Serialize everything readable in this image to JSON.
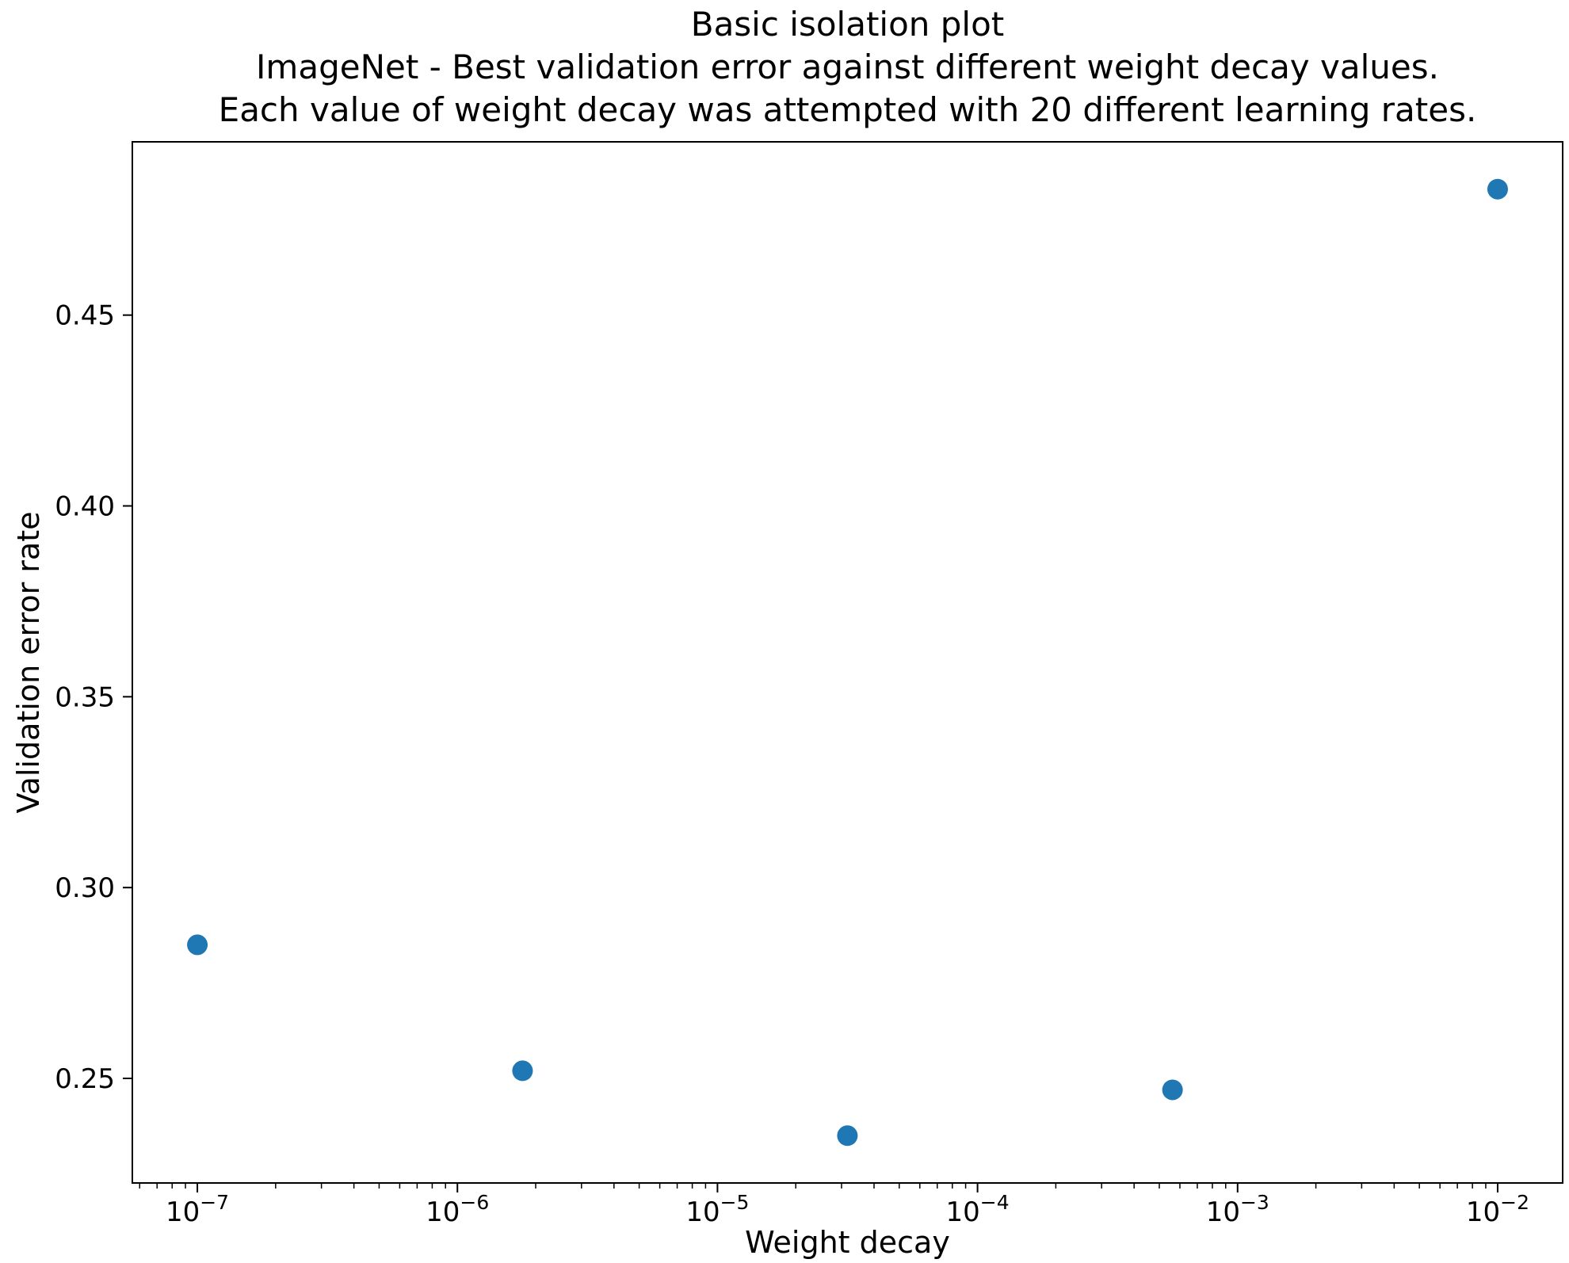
{
  "chart_data": {
    "type": "scatter",
    "title": "Basic isolation plot\nImageNet - Best validation error against different weight decay values.\nEach value of weight decay was attempted with 20 different learning rates.",
    "xlabel": "Weight decay",
    "ylabel": "Validation error rate",
    "x_scale": "log",
    "x": [
      1e-07,
      1.78e-06,
      3.16e-05,
      0.000562,
      0.01
    ],
    "y": [
      0.285,
      0.252,
      0.235,
      0.247,
      0.483
    ],
    "xlim_log10": [
      -7.25,
      -1.75
    ],
    "ylim": [
      0.2226,
      0.4954
    ],
    "x_tick_exponents": [
      -7,
      -6,
      -5,
      -4,
      -3,
      -2
    ],
    "y_tick_values": [
      0.25,
      0.3,
      0.35,
      0.4,
      0.45
    ],
    "y_tick_labels": [
      "0.25",
      "0.30",
      "0.35",
      "0.40",
      "0.45"
    ],
    "marker_color": "#1f77b4",
    "axis_color": "#000000",
    "grid": false,
    "legend": null
  }
}
